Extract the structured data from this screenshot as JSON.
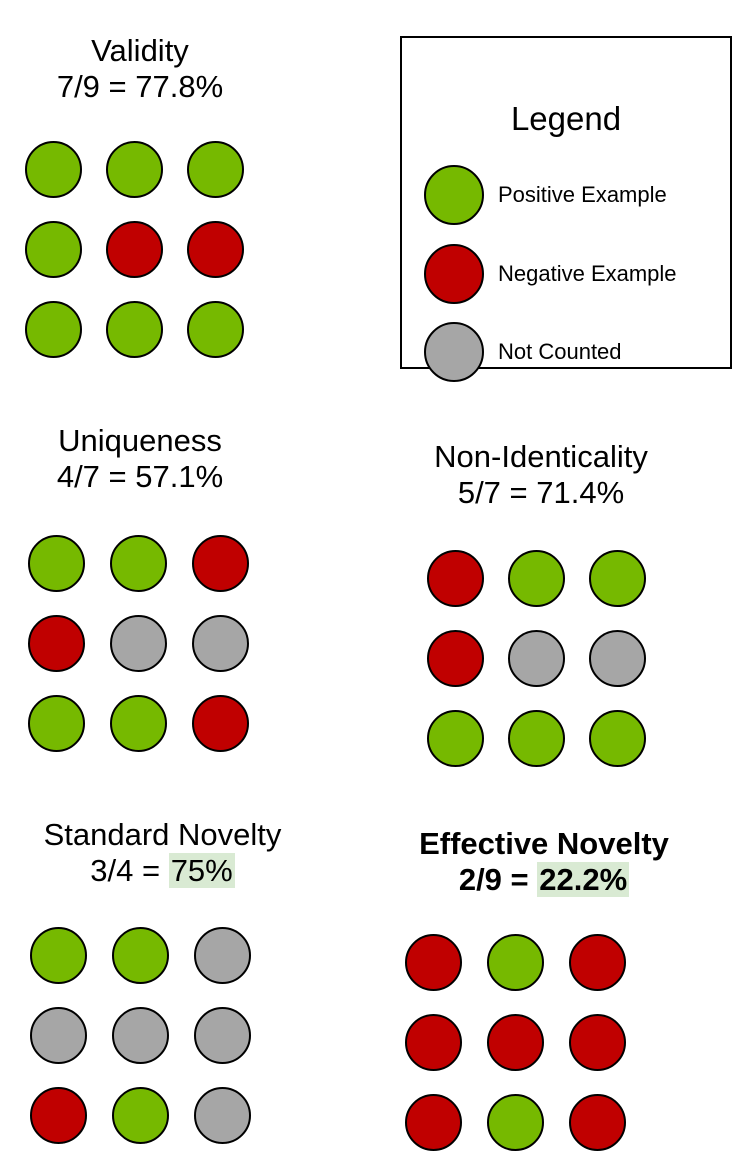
{
  "colors": {
    "positive": "#76b900",
    "negative": "#c00000",
    "neutral": "#a6a6a6",
    "highlight": "#d9ead3"
  },
  "legend": {
    "title": "Legend",
    "items": [
      {
        "label": "Positive Example",
        "status": "positive"
      },
      {
        "label": "Negative Example",
        "status": "negative"
      },
      {
        "label": "Not Counted",
        "status": "neutral"
      }
    ]
  },
  "panels": {
    "validity": {
      "name": "Validity",
      "formula": "7/9 = 77.8%",
      "grid": [
        [
          "positive",
          "positive",
          "positive"
        ],
        [
          "positive",
          "negative",
          "negative"
        ],
        [
          "positive",
          "positive",
          "positive"
        ]
      ]
    },
    "uniqueness": {
      "name": "Uniqueness",
      "formula": "4/7 = 57.1%",
      "grid": [
        [
          "positive",
          "positive",
          "negative"
        ],
        [
          "negative",
          "neutral",
          "neutral"
        ],
        [
          "positive",
          "positive",
          "negative"
        ]
      ]
    },
    "non_identicality": {
      "name": "Non-Identicality",
      "formula": "5/7 = 71.4%",
      "grid": [
        [
          "negative",
          "positive",
          "positive"
        ],
        [
          "negative",
          "neutral",
          "neutral"
        ],
        [
          "positive",
          "positive",
          "positive"
        ]
      ]
    },
    "standard_novelty": {
      "name": "Standard Novelty",
      "formula_prefix": "3/4 = ",
      "formula_value": "75%",
      "grid": [
        [
          "positive",
          "positive",
          "neutral"
        ],
        [
          "neutral",
          "neutral",
          "neutral"
        ],
        [
          "negative",
          "positive",
          "neutral"
        ]
      ]
    },
    "effective_novelty": {
      "name": "Effective Novelty",
      "formula_prefix": "2/9 = ",
      "formula_value": "22.2%",
      "grid": [
        [
          "negative",
          "positive",
          "negative"
        ],
        [
          "negative",
          "negative",
          "negative"
        ],
        [
          "negative",
          "positive",
          "negative"
        ]
      ]
    }
  }
}
